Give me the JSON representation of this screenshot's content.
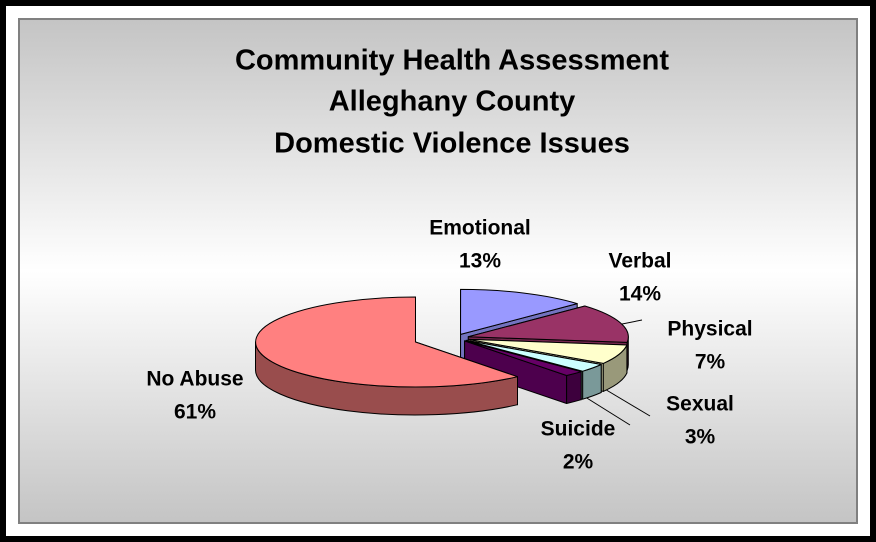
{
  "chart_data": {
    "type": "pie",
    "title": [
      "Community Health Assessment",
      "Alleghany County",
      "Domestic Violence Issues"
    ],
    "categories": [
      "Emotional",
      "Verbal",
      "Physical",
      "Sexual",
      "Suicide",
      "No Abuse"
    ],
    "values": [
      13,
      14,
      7,
      3,
      2,
      61
    ],
    "value_labels": [
      "13%",
      "14%",
      "7%",
      "3%",
      "2%",
      "61%"
    ],
    "colors": [
      "#9999ff",
      "#993366",
      "#ffffcc",
      "#ccffff",
      "#660066",
      "#ff8080"
    ]
  }
}
